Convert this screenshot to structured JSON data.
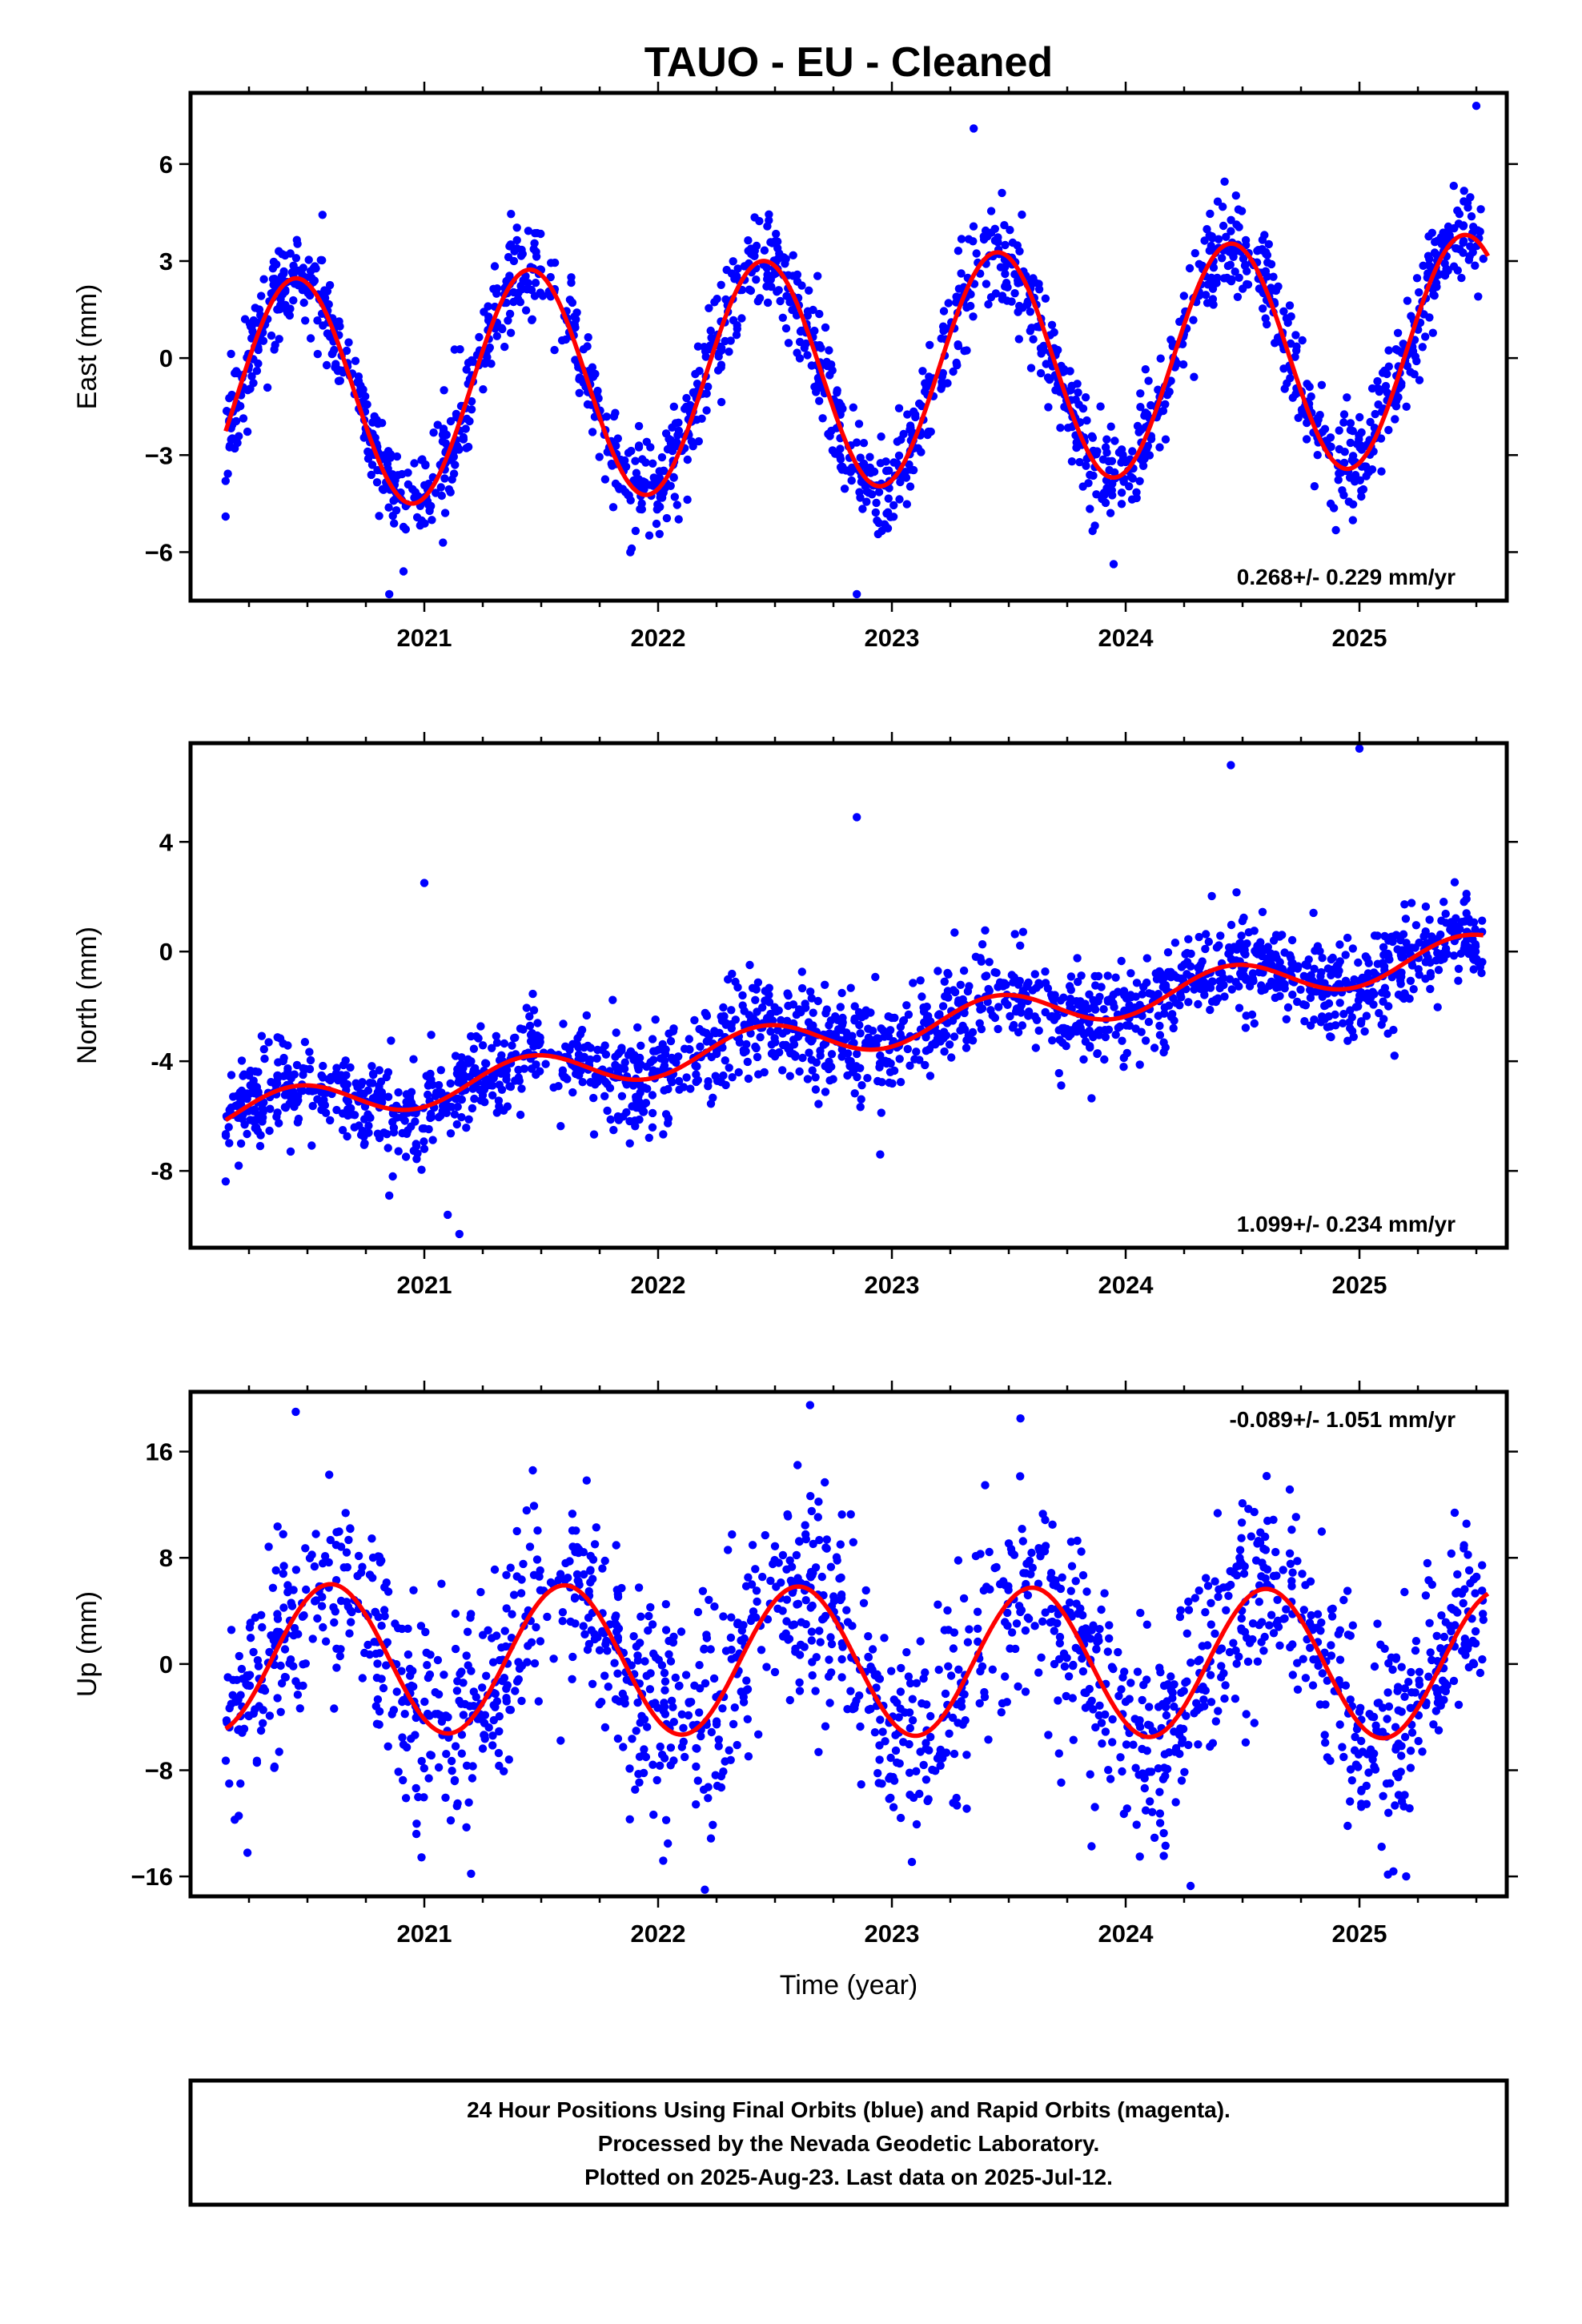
{
  "title": "TAUO  - EU - Cleaned",
  "footer": {
    "lines": [
      "24 Hour Positions Using Final Orbits (blue) and Rapid Orbits (magenta).",
      "Processed by the Nevada Geodetic Laboratory.",
      "Plotted on 2025-Aug-23. Last data on 2025-Jul-12."
    ]
  },
  "colors": {
    "points": "#0000ff",
    "model": "#ff0000",
    "frame": "#000000"
  },
  "chart_data": [
    {
      "type": "scatter",
      "name": "east",
      "ylabel": "East (mm)",
      "xlabel": "",
      "xlim": [
        2020.0,
        2025.63
      ],
      "ylim": [
        -7.5,
        8.2
      ],
      "yticks": [
        6,
        3,
        0,
        -3,
        -6
      ],
      "ytick_labels": [
        "6",
        "3",
        "0",
        "−3",
        "−6"
      ],
      "xticks": [
        2021,
        2022,
        2023,
        2024,
        2025
      ],
      "xtick_labels": [
        "2021",
        "2022",
        "2023",
        "2024",
        "2025"
      ],
      "rate_label": "0.268+/- 0.229 mm/yr",
      "rate_position": "bottom-right",
      "model": {
        "offset": -0.4,
        "trend": 0.268,
        "amplitude": 3.55,
        "peak_phase": 0.45,
        "start": 2020.15,
        "end": 2025.55
      },
      "points": {
        "start": 2020.15,
        "end": 2025.53,
        "count": 1850,
        "scatter": 0.75,
        "outliers": [
          [
            2020.15,
            -4.9
          ],
          [
            2020.85,
            -7.3
          ],
          [
            2022.85,
            -7.3
          ],
          [
            2023.35,
            7.1
          ],
          [
            2025.5,
            7.8
          ],
          [
            2020.15,
            -3.8
          ]
        ]
      }
    },
    {
      "type": "scatter",
      "name": "north",
      "ylabel": "North (mm)",
      "xlabel": "",
      "xlim": [
        2020.0,
        2025.63
      ],
      "ylim": [
        -10.8,
        7.6
      ],
      "yticks": [
        4,
        0,
        -4,
        -8
      ],
      "ytick_labels": [
        "4",
        "0",
        "-4",
        "-8"
      ],
      "xticks": [
        2021,
        2022,
        2023,
        2024,
        2025
      ],
      "xtick_labels": [
        "2021",
        "2022",
        "2023",
        "2024",
        "2025"
      ],
      "rate_label": "1.099+/- 0.234 mm/yr",
      "rate_position": "bottom-right",
      "model": {
        "offset": -2.8,
        "trend": 1.099,
        "amplitude": 0.7,
        "peak_phase": 0.45,
        "start": 2020.15,
        "end": 2025.53
      },
      "points": {
        "start": 2020.15,
        "end": 2025.53,
        "count": 1800,
        "scatter": 0.85,
        "outliers": [
          [
            2021.15,
            -10.3
          ],
          [
            2021.1,
            -9.6
          ],
          [
            2021.0,
            -7.2
          ],
          [
            2020.85,
            -8.9
          ],
          [
            2022.95,
            -7.4
          ],
          [
            2024.45,
            6.8
          ],
          [
            2025.0,
            7.4
          ],
          [
            2025.15,
            -3.8
          ],
          [
            2020.3,
            -6.7
          ],
          [
            2022.85,
            4.9
          ],
          [
            2021.0,
            2.5
          ]
        ]
      }
    },
    {
      "type": "scatter",
      "name": "up",
      "ylabel": "Up (mm)",
      "xlabel": "Time (year)",
      "xlim": [
        2020.0,
        2025.63
      ],
      "ylim": [
        -17.5,
        20.5
      ],
      "yticks": [
        16,
        8,
        0,
        -8,
        -16
      ],
      "ytick_labels": [
        "16",
        "8",
        "0",
        "−8",
        "−16"
      ],
      "xticks": [
        2021,
        2022,
        2023,
        2024,
        2025
      ],
      "xtick_labels": [
        "2021",
        "2022",
        "2023",
        "2024",
        "2025"
      ],
      "rate_label": "-0.089+/- 1.051 mm/yr",
      "rate_position": "top-right",
      "model": {
        "offset": 0.2,
        "trend": -0.089,
        "amplitude": 5.6,
        "peak_phase": 0.6,
        "start": 2020.15,
        "end": 2025.55
      },
      "points": {
        "start": 2020.15,
        "end": 2025.53,
        "count": 1700,
        "scatter": 4.0,
        "outliers": [
          [
            2022.2,
            -17.0
          ],
          [
            2020.45,
            19.0
          ],
          [
            2022.65,
            19.5
          ],
          [
            2023.55,
            18.5
          ],
          [
            2021.2,
            -15.8
          ],
          [
            2025.2,
            -16.0
          ]
        ]
      }
    }
  ]
}
